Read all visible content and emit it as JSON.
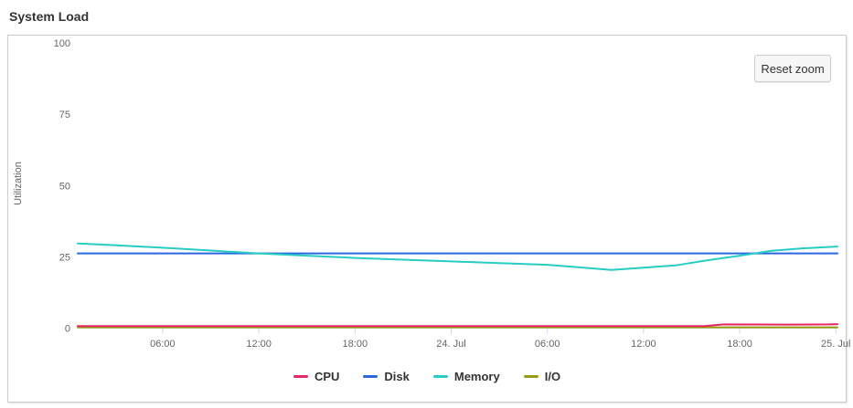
{
  "page": {
    "title": "System Load"
  },
  "controls": {
    "reset_zoom": "Reset zoom"
  },
  "colors": {
    "axis_text": "#666666",
    "axis_line": "#ccd6eb",
    "legend_text": "#333333",
    "panel_border": "#cccccc"
  },
  "chart_data": {
    "type": "line",
    "title": "System Load",
    "xlabel": "",
    "ylabel": "Utilization",
    "ylim": [
      0,
      100
    ],
    "y_ticks": [
      0,
      25,
      50,
      75,
      100
    ],
    "x_unit_note": "hours after 23 Jul 00:00",
    "xlim": [
      0.7,
      48.1
    ],
    "x_ticks": [
      {
        "t": 6,
        "label": "06:00"
      },
      {
        "t": 12,
        "label": "12:00"
      },
      {
        "t": 18,
        "label": "18:00"
      },
      {
        "t": 24,
        "label": "24. Jul"
      },
      {
        "t": 30,
        "label": "06:00"
      },
      {
        "t": 36,
        "label": "12:00"
      },
      {
        "t": 42,
        "label": "18:00"
      },
      {
        "t": 48,
        "label": "25. Jul"
      }
    ],
    "grid": false,
    "legend_position": "bottom-center",
    "series": [
      {
        "name": "I/O",
        "color": "#9a9b10",
        "points": [
          [
            0.7,
            0.3
          ],
          [
            48.1,
            0.3
          ]
        ]
      },
      {
        "name": "CPU",
        "color": "#e82567",
        "points": [
          [
            0.7,
            0.7
          ],
          [
            39.8,
            0.7
          ],
          [
            41,
            1.3
          ],
          [
            45,
            1.25
          ],
          [
            47.5,
            1.3
          ],
          [
            48.1,
            1.4
          ]
        ]
      },
      {
        "name": "Disk",
        "color": "#2b68dd",
        "points": [
          [
            0.7,
            26.2
          ],
          [
            48.1,
            26.2
          ]
        ]
      },
      {
        "name": "Memory",
        "color": "#28ccc5",
        "points": [
          [
            0.7,
            29.7
          ],
          [
            3,
            29.1
          ],
          [
            6,
            28.2
          ],
          [
            9,
            27.2
          ],
          [
            12,
            26.2
          ],
          [
            15,
            25.4
          ],
          [
            18,
            24.6
          ],
          [
            21,
            24.0
          ],
          [
            24,
            23.4
          ],
          [
            27,
            22.8
          ],
          [
            30,
            22.2
          ],
          [
            32,
            21.3
          ],
          [
            34,
            20.4
          ],
          [
            36,
            21.2
          ],
          [
            38,
            22.0
          ],
          [
            40,
            23.8
          ],
          [
            42,
            25.4
          ],
          [
            44,
            27.1
          ],
          [
            46,
            28.0
          ],
          [
            48.1,
            28.6
          ]
        ]
      }
    ],
    "legend_order": [
      "CPU",
      "Disk",
      "Memory",
      "I/O"
    ]
  }
}
